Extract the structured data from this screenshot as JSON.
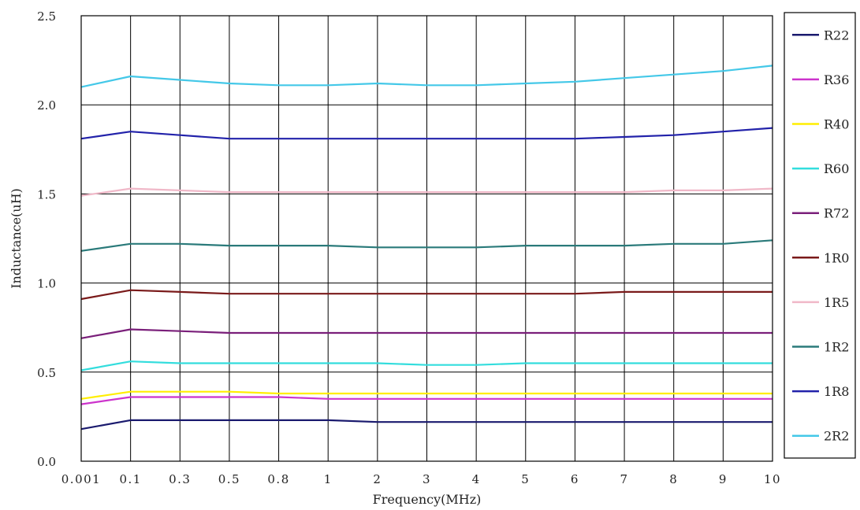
{
  "chart_data": {
    "type": "line",
    "title": "",
    "xlabel": "Frequency(MHz)",
    "ylabel": "Inductance(uH)",
    "ylim": [
      0,
      2.5
    ],
    "y_ticks": [
      "0.0",
      "0.5",
      "1.0",
      "1.5",
      "2.0",
      "2.5"
    ],
    "y_tick_values": [
      0,
      0.5,
      1.0,
      1.5,
      2.0,
      2.5
    ],
    "categories": [
      "0.001",
      "0.1",
      "0.3",
      "0.5",
      "0.8",
      "1",
      "2",
      "3",
      "4",
      "5",
      "6",
      "7",
      "8",
      "9",
      "10"
    ],
    "x_tick_labels": [
      "0.001",
      "0.1",
      "0.3",
      "0.5",
      "0.8",
      "1",
      "2",
      "3",
      "4",
      "5",
      "6",
      "7",
      "8",
      "9",
      "10"
    ],
    "grid": true,
    "legend_position": "right",
    "series": [
      {
        "name": "R22",
        "color": "#1a1a6e",
        "values": [
          0.18,
          0.23,
          0.23,
          0.23,
          0.23,
          0.23,
          0.22,
          0.22,
          0.22,
          0.22,
          0.22,
          0.22,
          0.22,
          0.22,
          0.22
        ]
      },
      {
        "name": "R36",
        "color": "#cc33cc",
        "values": [
          0.32,
          0.36,
          0.36,
          0.36,
          0.36,
          0.35,
          0.35,
          0.35,
          0.35,
          0.35,
          0.35,
          0.35,
          0.35,
          0.35,
          0.35
        ]
      },
      {
        "name": "R40",
        "color": "#ffee00",
        "values": [
          0.35,
          0.39,
          0.39,
          0.39,
          0.38,
          0.38,
          0.38,
          0.38,
          0.38,
          0.38,
          0.38,
          0.38,
          0.38,
          0.38,
          0.38
        ]
      },
      {
        "name": "R60",
        "color": "#33dddd",
        "values": [
          0.51,
          0.56,
          0.55,
          0.55,
          0.55,
          0.55,
          0.55,
          0.54,
          0.54,
          0.55,
          0.55,
          0.55,
          0.55,
          0.55,
          0.55
        ]
      },
      {
        "name": "R72",
        "color": "#7a1f7a",
        "values": [
          0.69,
          0.74,
          0.73,
          0.72,
          0.72,
          0.72,
          0.72,
          0.72,
          0.72,
          0.72,
          0.72,
          0.72,
          0.72,
          0.72,
          0.72
        ]
      },
      {
        "name": "1R0",
        "color": "#7a1a1a",
        "values": [
          0.91,
          0.96,
          0.95,
          0.94,
          0.94,
          0.94,
          0.94,
          0.94,
          0.94,
          0.94,
          0.94,
          0.95,
          0.95,
          0.95,
          0.95
        ]
      },
      {
        "name": "1R5",
        "color": "#f0b8c8",
        "values": [
          1.49,
          1.53,
          1.52,
          1.51,
          1.51,
          1.51,
          1.51,
          1.51,
          1.51,
          1.51,
          1.51,
          1.51,
          1.52,
          1.52,
          1.53
        ]
      },
      {
        "name": "1R2",
        "color": "#2a7a7a",
        "values": [
          1.18,
          1.22,
          1.22,
          1.21,
          1.21,
          1.21,
          1.2,
          1.2,
          1.2,
          1.21,
          1.21,
          1.21,
          1.22,
          1.22,
          1.24
        ]
      },
      {
        "name": "1R8",
        "color": "#2222aa",
        "values": [
          1.81,
          1.85,
          1.83,
          1.81,
          1.81,
          1.81,
          1.81,
          1.81,
          1.81,
          1.81,
          1.81,
          1.82,
          1.83,
          1.85,
          1.87
        ]
      },
      {
        "name": "2R2",
        "color": "#44c8e8",
        "values": [
          2.1,
          2.16,
          2.14,
          2.12,
          2.11,
          2.11,
          2.12,
          2.11,
          2.11,
          2.12,
          2.13,
          2.15,
          2.17,
          2.19,
          2.22
        ]
      }
    ]
  }
}
